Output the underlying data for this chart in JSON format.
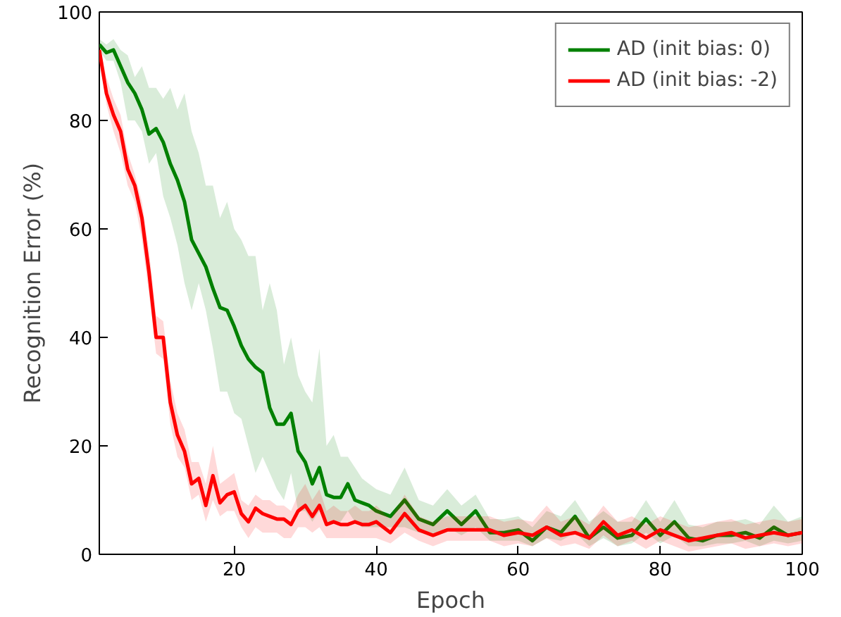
{
  "chart_data": {
    "type": "line",
    "xlabel": "Epoch",
    "ylabel": "Recognition Error (%)",
    "xlim": [
      1,
      100
    ],
    "ylim": [
      0,
      100
    ],
    "xticks": [
      20,
      40,
      60,
      80,
      100
    ],
    "yticks": [
      0,
      20,
      40,
      60,
      80,
      100
    ],
    "grid": false,
    "legend": "top right",
    "line_style": "solid",
    "marker": "none",
    "series": [
      {
        "name": "AD (init bias: 0)",
        "color": "#008000",
        "x": [
          1,
          2,
          3,
          4,
          5,
          6,
          7,
          8,
          9,
          10,
          11,
          12,
          13,
          14,
          15,
          16,
          17,
          18,
          19,
          20,
          21,
          22,
          23,
          24,
          25,
          26,
          27,
          28,
          29,
          30,
          31,
          32,
          33,
          34,
          35,
          36,
          37,
          38,
          39,
          40,
          42,
          44,
          46,
          48,
          50,
          52,
          54,
          56,
          58,
          60,
          62,
          64,
          66,
          68,
          70,
          72,
          74,
          76,
          78,
          80,
          82,
          84,
          86,
          88,
          90,
          92,
          94,
          96,
          98,
          100
        ],
        "values": [
          94,
          92.5,
          93,
          90,
          87,
          85,
          82,
          77.5,
          78.5,
          76,
          72,
          69,
          65,
          58,
          55.5,
          53,
          49,
          45.5,
          45,
          42,
          38.5,
          36,
          34.5,
          33.5,
          27,
          24,
          24,
          26,
          19,
          17,
          13,
          16,
          11,
          10.5,
          10.5,
          13,
          10,
          9.5,
          9,
          8,
          7,
          10,
          6.5,
          5.5,
          8,
          5.5,
          8,
          4,
          4,
          4.5,
          2.5,
          5,
          4,
          7,
          3,
          5,
          3,
          3.5,
          6.5,
          3.5,
          6,
          3,
          2.5,
          3.5,
          3.5,
          4,
          3,
          5,
          3.5,
          4
        ],
        "lower": [
          93,
          91,
          91,
          87,
          80,
          80,
          78,
          72,
          74,
          66,
          62,
          57,
          50,
          45,
          50,
          45,
          38,
          30,
          30,
          26,
          25,
          20,
          15,
          18,
          15,
          12,
          10,
          15,
          8,
          8,
          6,
          8,
          6,
          6,
          6,
          8,
          6,
          5,
          5,
          5,
          5,
          5,
          4,
          3.5,
          5,
          3.5,
          5,
          2.5,
          2.5,
          2.5,
          1.5,
          3,
          2.5,
          4,
          1.5,
          3,
          1.5,
          2,
          4,
          2,
          3.5,
          1.5,
          1.5,
          2,
          2,
          2.5,
          1.5,
          2.5,
          2,
          2.5
        ],
        "upper": [
          95,
          94,
          95,
          93,
          92,
          88,
          90,
          86,
          86,
          84,
          86,
          82,
          85,
          78,
          74,
          68,
          68,
          62,
          65,
          60,
          58,
          55,
          55,
          45,
          50,
          45,
          35,
          40,
          33,
          30,
          28,
          38,
          20,
          22,
          18,
          18,
          16,
          14,
          13,
          12,
          11,
          16,
          10,
          9,
          12,
          9,
          11,
          6.5,
          6.5,
          7,
          5,
          8,
          7,
          10,
          6,
          8,
          6,
          6,
          10,
          6,
          10,
          5.5,
          5,
          6,
          6,
          6.5,
          5.5,
          9,
          6,
          7
        ]
      },
      {
        "name": "AD (init bias: -2)",
        "color": "#ff0000",
        "x": [
          1,
          2,
          3,
          4,
          5,
          6,
          7,
          8,
          9,
          10,
          11,
          12,
          13,
          14,
          15,
          16,
          17,
          18,
          19,
          20,
          21,
          22,
          23,
          24,
          25,
          26,
          27,
          28,
          29,
          30,
          31,
          32,
          33,
          34,
          35,
          36,
          37,
          38,
          39,
          40,
          42,
          44,
          46,
          48,
          50,
          52,
          54,
          56,
          58,
          60,
          62,
          64,
          66,
          68,
          70,
          72,
          74,
          76,
          78,
          80,
          82,
          84,
          86,
          88,
          90,
          92,
          94,
          96,
          98,
          100
        ],
        "values": [
          93,
          85,
          81,
          78,
          71,
          68,
          62,
          52,
          40,
          40,
          28,
          22,
          19,
          13,
          14,
          9,
          14.5,
          9.5,
          11,
          11.5,
          7.5,
          6,
          8.5,
          7.5,
          7,
          6.5,
          6.5,
          5.5,
          8,
          9,
          7,
          9,
          5.5,
          6,
          5.5,
          5.5,
          6,
          5.5,
          5.5,
          6,
          4,
          7.5,
          4.5,
          3.5,
          4.5,
          4.5,
          4.5,
          4.5,
          3.5,
          4,
          3.5,
          5,
          3.5,
          4,
          3,
          6,
          3.5,
          4.5,
          3,
          4.5,
          3.5,
          2.5,
          3,
          3.5,
          4,
          3,
          3.5,
          4,
          3.5,
          4
        ],
        "lower": [
          92,
          83,
          78,
          74,
          68,
          65,
          58,
          48,
          37,
          36,
          24,
          18,
          16,
          10,
          11,
          6,
          10,
          7,
          8,
          8,
          5,
          3,
          5,
          4,
          4,
          4,
          3,
          3,
          5,
          5,
          4,
          5,
          3,
          3,
          3,
          3,
          3,
          3,
          3,
          3,
          2,
          4,
          2.5,
          1.5,
          2.5,
          2.5,
          2.5,
          2.5,
          1.5,
          2,
          1.5,
          3,
          1.5,
          2,
          1,
          3.5,
          1.5,
          2.5,
          1,
          2.5,
          1.5,
          0.5,
          1,
          1.5,
          2,
          1,
          1.5,
          2,
          1.5,
          2
        ],
        "upper": [
          94,
          88,
          84,
          81,
          74,
          70,
          65,
          56,
          44,
          43,
          32,
          26,
          23,
          17,
          17,
          13,
          20,
          13,
          14,
          15,
          10,
          9,
          11,
          10,
          10,
          9,
          9,
          8,
          11,
          13,
          10,
          12,
          8,
          9,
          8,
          8,
          9,
          8,
          8,
          9,
          6.5,
          11,
          7,
          6,
          7,
          7,
          7,
          7,
          6,
          6.5,
          6,
          9,
          6,
          7,
          5.5,
          9,
          6,
          7,
          5.5,
          7,
          6,
          5,
          5.5,
          6,
          6.5,
          5.5,
          6,
          6.5,
          6,
          6.5
        ]
      }
    ]
  }
}
